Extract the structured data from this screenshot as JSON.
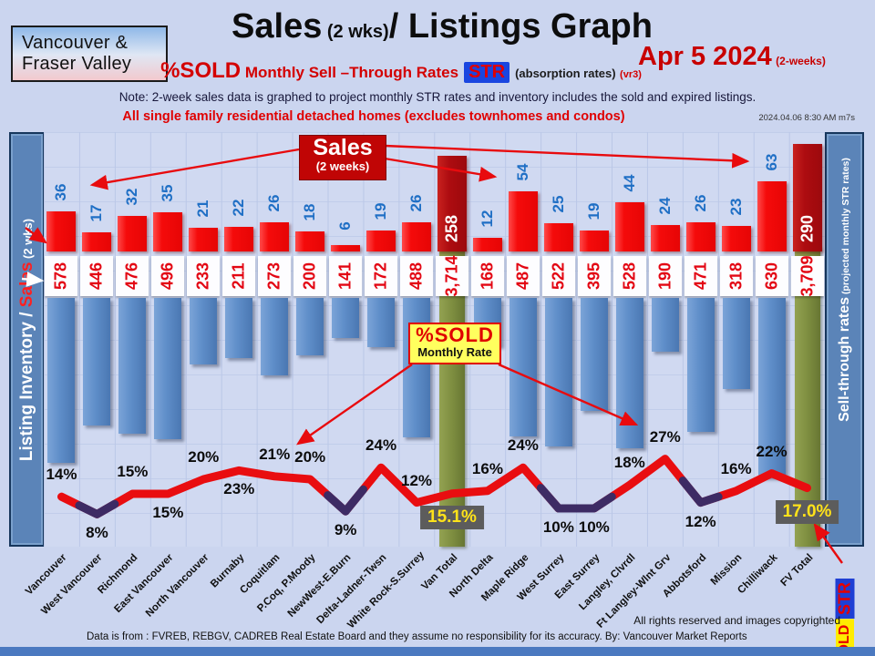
{
  "header": {
    "logo_line1": "Vancouver &",
    "logo_line2": "Fraser Valley",
    "title_main": "Sales",
    "title_small": " (2 wks)",
    "title_rest": "/ Listings Graph",
    "subtitle_percent": "%SOLD",
    "subtitle_rest": " Monthly Sell –Through Rates",
    "str_badge": "STR",
    "subtitle_abs": "(absorption rates)",
    "subtitle_ver": "(vr3)",
    "date": "Apr 5  2024",
    "date_tail": "(2-weeks)",
    "note": "Note:  2-week sales data is graphed to project monthly  STR rates and inventory  includes the  sold and expired listings.",
    "scope": "All single family residential detached homes (excludes townhomes and condos)",
    "timestamp": "2024.04.06 8:30 AM m7s"
  },
  "left_axis": {
    "label_white": "Listing Inventory / ",
    "label_red": "Sales",
    "label_tail": " (2  wks)"
  },
  "right_axis": {
    "label": "Sell-through  rates",
    "label_tail": "  (projected monthly STR rates)",
    "str_badge": "STR",
    "sold_badge": "%SOLD"
  },
  "annotations": {
    "sales_box_title": "Sales",
    "sales_box_sub": "(2 weeks)",
    "sold_box_title": "%SOLD",
    "sold_box_sub": "Monthly Rate"
  },
  "footer": {
    "rights": "All rights reserved and  images copyrighted",
    "source": "Data is from : FVREB, REBGV,  CADREB Real Estate Board and they assume no responsibility for its accuracy. By:  Vancouver Market Reports"
  },
  "chart_data": {
    "type": "bar+line",
    "title": "Sales (2 wks) / Listings Graph — %SOLD Monthly Sell-Through Rates, Apr 5 2024",
    "categories": [
      "Vancouver",
      "West Vancouver",
      "Richmond",
      "East Vancouver",
      "North Vancouver",
      "Burnaby",
      "Coquitlam",
      "P.Coq, P.Moody",
      "NewWest-E.Burn",
      "Delta-Ladner-Twsn",
      "White Rock-S.Surrey",
      "Van Total",
      "North Delta",
      "Maple Ridge",
      "West Surrey",
      "East Surrey",
      "Langley, Clvrdl",
      "Ft Langley-Wlnt Grv",
      "Abbotsford",
      "Mission",
      "Chilliwack",
      "FV Total"
    ],
    "series": [
      {
        "name": "Sales (2 weeks)",
        "values": [
          36,
          17,
          32,
          35,
          21,
          22,
          26,
          18,
          6,
          19,
          26,
          258,
          12,
          54,
          25,
          19,
          44,
          24,
          26,
          23,
          63,
          290
        ]
      },
      {
        "name": "Listing Inventory (includes sold and expired)",
        "values": [
          578,
          446,
          476,
          496,
          233,
          211,
          273,
          200,
          141,
          172,
          488,
          3714,
          168,
          487,
          522,
          395,
          528,
          190,
          471,
          318,
          630,
          3709
        ]
      },
      {
        "name": "%SOLD projected monthly STR rate",
        "values": [
          14,
          8,
          15,
          15,
          20,
          23,
          21,
          20,
          9,
          24,
          12,
          15.1,
          16,
          24,
          10,
          10,
          18,
          27,
          12,
          16,
          22,
          17.0
        ]
      }
    ],
    "total_indices": [
      11,
      21
    ],
    "pct_label_side": [
      "above",
      "below",
      "above",
      "below",
      "above",
      "below",
      "above",
      "above",
      "below",
      "above",
      "above",
      "box",
      "above",
      "above",
      "below",
      "below",
      "above",
      "above",
      "below",
      "above",
      "above",
      "box"
    ],
    "dark_dip_indices": [
      1,
      8,
      14,
      15,
      18
    ],
    "legend_position": "none",
    "grid": true,
    "colors": {
      "sales_bar": "#f50b0b",
      "total_sales_bar": "#ad0c10",
      "inventory_bar": "#5f8ec9",
      "total_inventory_bar": "#7e8e40",
      "line": "#e90d10",
      "line_dip": "#2a2f6e",
      "sales_label": "#1f6fc5",
      "inventory_label": "#e30613",
      "pct_box_bg": "#5c5c5c",
      "pct_box_text": "#ffe21a"
    }
  }
}
